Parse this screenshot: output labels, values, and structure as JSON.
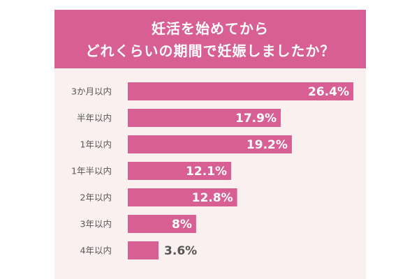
{
  "title": {
    "line1": "妊活を始めてから",
    "line2": "どれくらいの期間で妊娠しましたか？"
  },
  "colors": {
    "accent": "#d85f93",
    "panel_bg": "#fbf0f0",
    "label_text": "#555555",
    "value_inside": "#ffffff",
    "value_outside": "#555555"
  },
  "chart_data": {
    "type": "bar",
    "orientation": "horizontal",
    "title": "妊活を始めてから どれくらいの期間で妊娠しましたか？",
    "categories": [
      "3か月以内",
      "半年以内",
      "1年以内",
      "1年半以内",
      "2年以内",
      "3年以内",
      "4年以内"
    ],
    "values": [
      26.4,
      17.9,
      19.2,
      12.1,
      12.8,
      8,
      3.6
    ],
    "value_labels": [
      "26.4%",
      "17.9%",
      "19.2%",
      "12.1%",
      "12.8%",
      "8%",
      "3.6%"
    ],
    "unit": "%",
    "xlim": [
      0,
      26.4
    ],
    "xlabel": "",
    "ylabel": "",
    "grid": false,
    "legend": "none"
  }
}
